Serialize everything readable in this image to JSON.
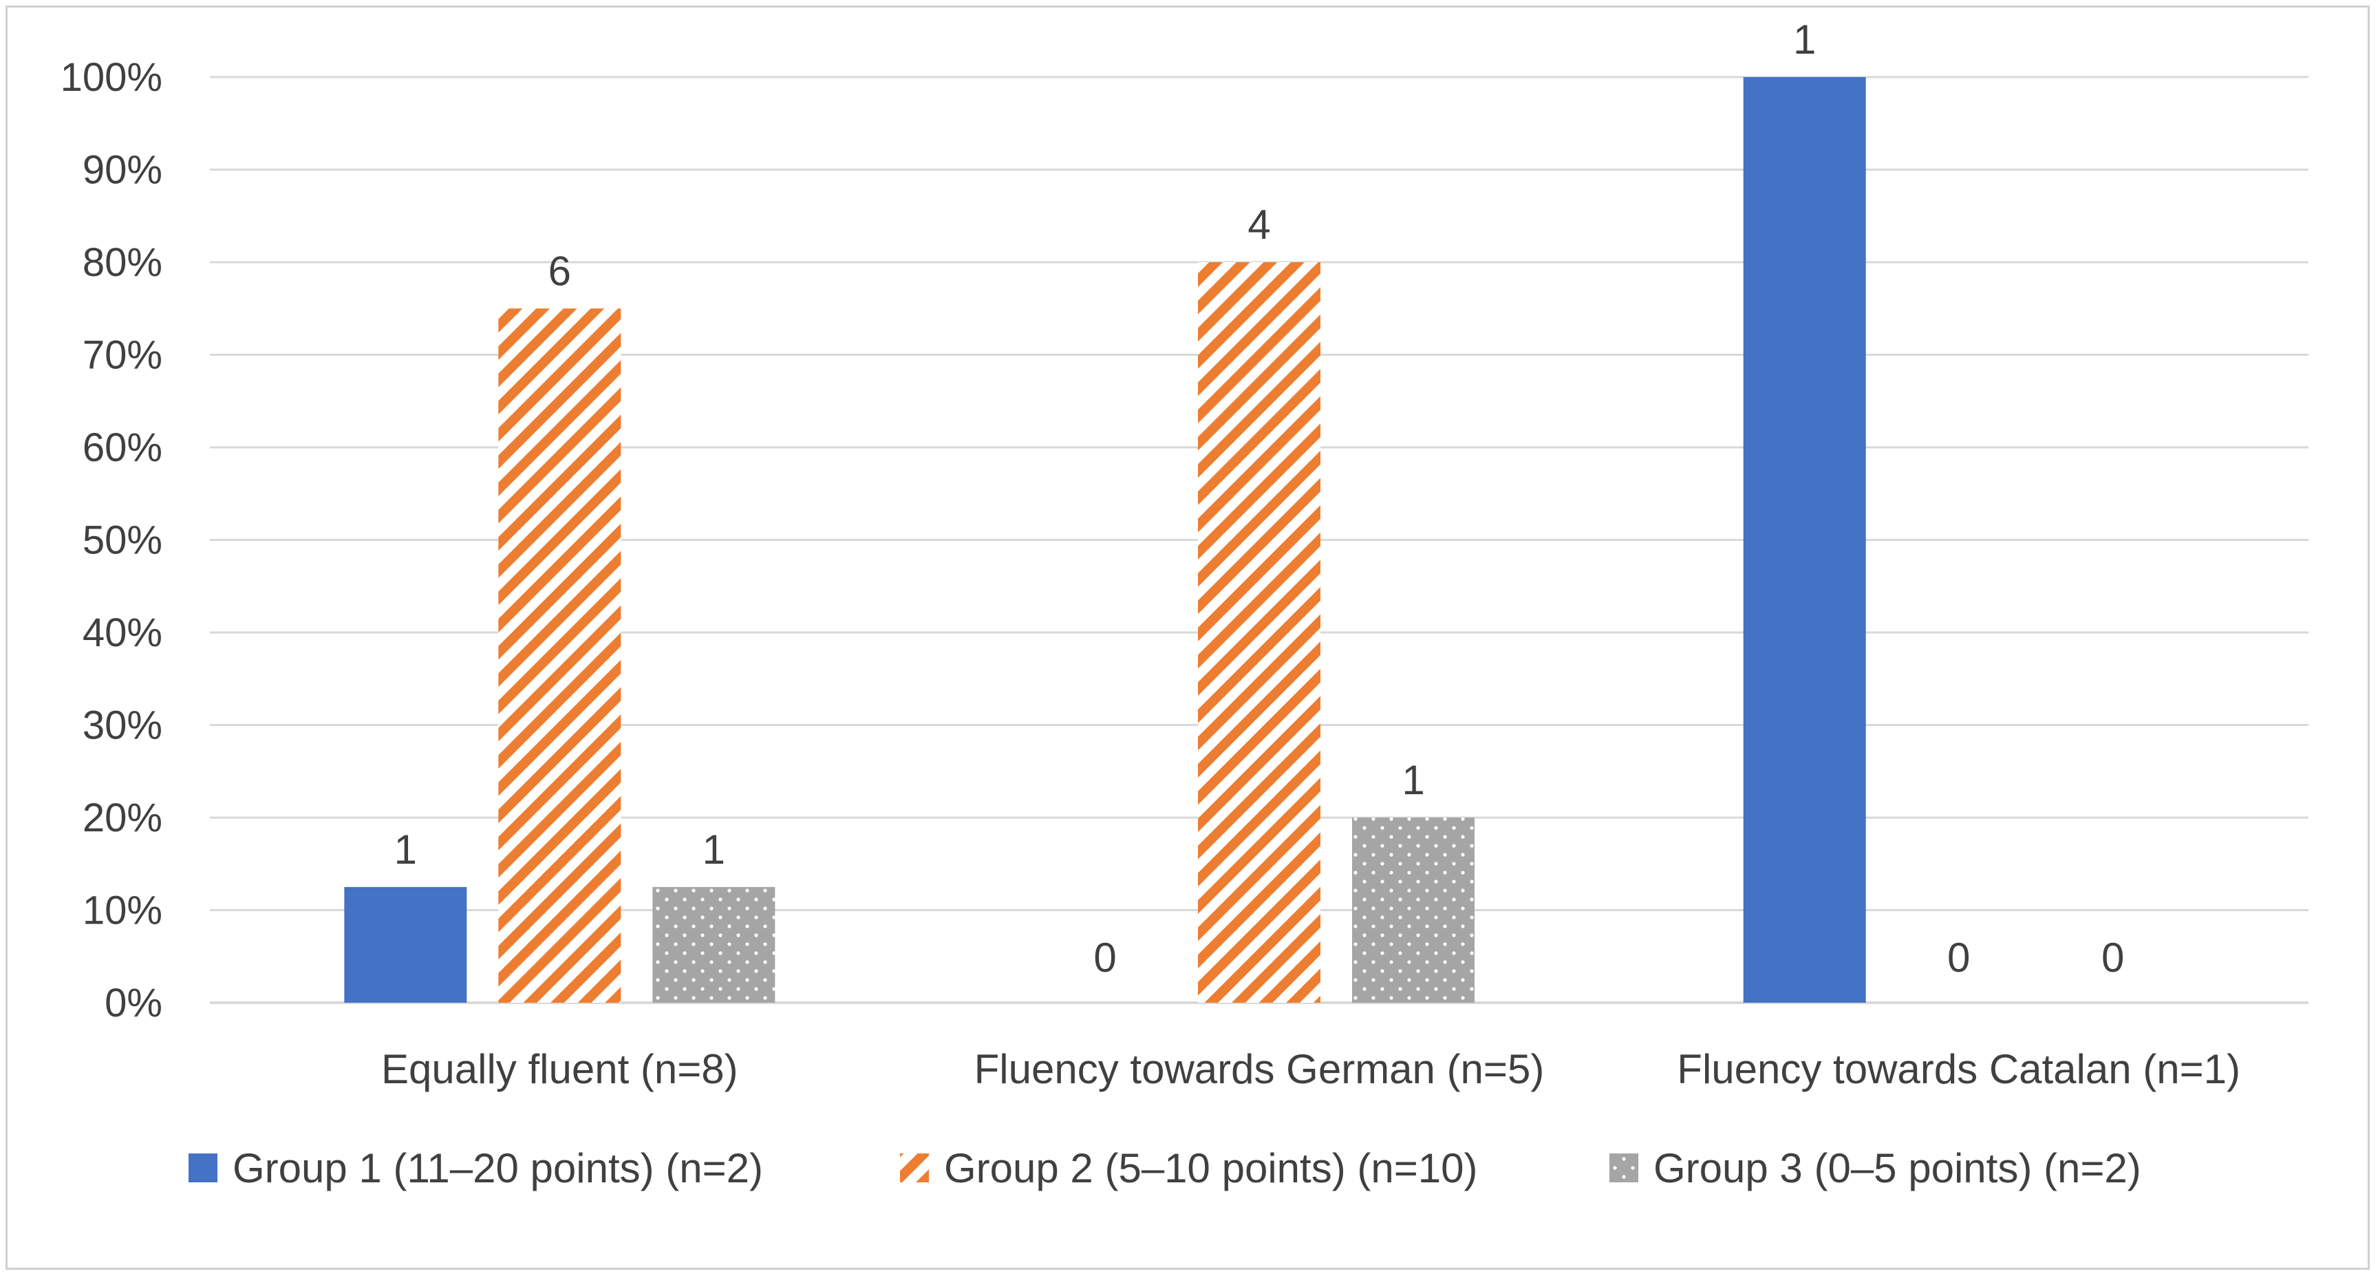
{
  "chart_data": {
    "type": "bar",
    "title": "",
    "xlabel": "",
    "ylabel": "",
    "ylim": [
      0,
      100
    ],
    "y_ticks": [
      "0%",
      "10%",
      "20%",
      "30%",
      "40%",
      "50%",
      "60%",
      "70%",
      "80%",
      "90%",
      "100%"
    ],
    "grid": true,
    "legend_position": "bottom",
    "categories": [
      "Equally fluent (n=8)",
      "Fluency towards German (n=5)",
      "Fluency towards Catalan (n=1)"
    ],
    "series": [
      {
        "name": "Group 1 (11–20 points) (n=2)",
        "values": [
          12.5,
          0,
          100
        ],
        "labels": [
          "1",
          "0",
          "1"
        ],
        "color": "#4472c4",
        "pattern": "solid"
      },
      {
        "name": "Group 2 (5–10 points) (n=10)",
        "values": [
          75,
          80,
          0
        ],
        "labels": [
          "6",
          "4",
          "0"
        ],
        "color": "#ed7d31",
        "pattern": "diagonal-stripes"
      },
      {
        "name": "Group 3 (0–5 points) (n=2)",
        "values": [
          12.5,
          20,
          0
        ],
        "labels": [
          "1",
          "1",
          "0"
        ],
        "color": "#a5a5a5",
        "pattern": "dots"
      }
    ]
  }
}
